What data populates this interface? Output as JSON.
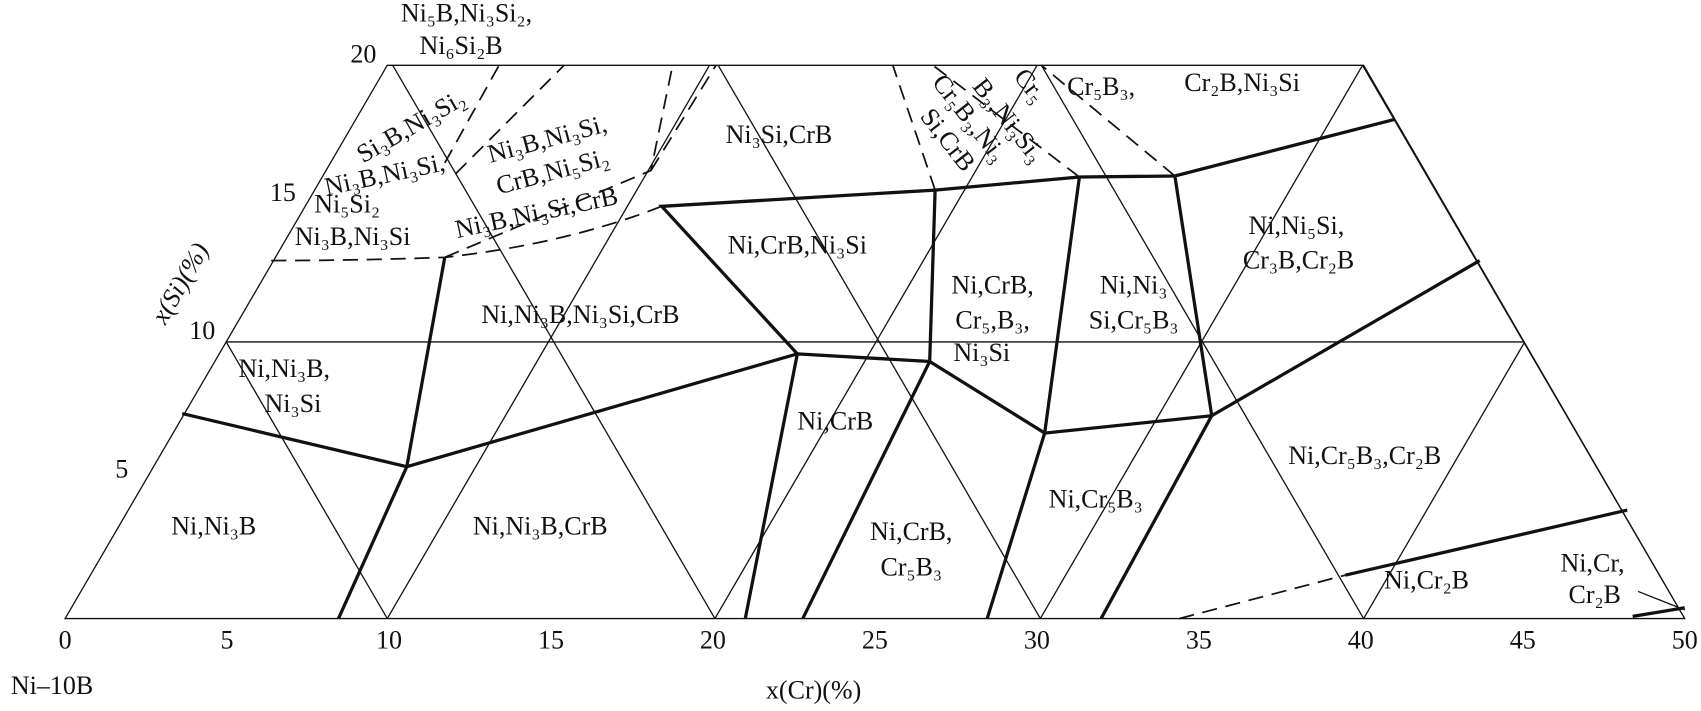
{
  "top_labels": [
    "Ni₅B,Ni₃Si₂,",
    "Ni₆Si₂B"
  ],
  "y_axis": {
    "label": "x(Si)(%)",
    "ticks": [
      5,
      10,
      15,
      20
    ]
  },
  "x_axis": {
    "label": "x(Cr)(%)",
    "ticks": [
      0,
      5,
      10,
      15,
      20,
      25,
      30,
      35,
      40,
      45,
      50
    ]
  },
  "corner_label": "Ni–10B",
  "region_labels": [
    "Si₃B,Ni₃Si₂",
    "Ni₃B,Ni₃Si,",
    "Ni₅Si₂",
    "Ni₃B,Ni₃Si",
    "Ni₃B,Ni₃Si,",
    "CrB,Ni₅Si₂",
    "Ni₃B,Ni₃Si,CrB",
    "Ni₃Si,CrB",
    "Cr₅",
    "B₃,Ni₃Si₃",
    "Cr₅B₃,Ni₃",
    "Si,CrB",
    "Cr₅B₃,",
    "Cr₂B,Ni₃Si",
    "Ni,CrB,Ni₃Si",
    "Ni,Ni₅Si,",
    "Cr₃B,Cr₂B",
    "Ni,CrB,",
    "Cr₅,B₃,",
    "Ni₃Si",
    "Ni,Ni₃",
    "Si,Cr₅B₃",
    "Ni,Ni₃B,Ni₃Si,CrB",
    "Ni,Ni₃B,",
    "Ni₃Si",
    "Ni,CrB",
    "Ni,Cr₅B₃",
    "Ni,Cr₅B₃,Cr₂B",
    "Ni,Ni₃B",
    "Ni,Ni₃B,CrB",
    "Ni,CrB,",
    "Cr₅B₃",
    "Ni,Cr₂B",
    "Ni,Cr,",
    "Cr₂B"
  ]
}
